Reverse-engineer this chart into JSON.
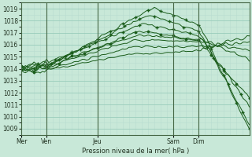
{
  "title": "",
  "xlabel": "Pression niveau de la mer( hPa )",
  "bg_color": "#c8e8d8",
  "grid_major_color": "#99ccbb",
  "grid_minor_color": "#b8ddd0",
  "line_color": "#1a5c1a",
  "ylim": [
    1008.5,
    1019.5
  ],
  "yticks": [
    1009,
    1010,
    1011,
    1012,
    1013,
    1014,
    1015,
    1016,
    1017,
    1018,
    1019
  ],
  "x_day_labels": [
    "Mer",
    "Ven",
    "Jeu",
    "Sam",
    "Dim"
  ],
  "x_day_positions": [
    0,
    12,
    36,
    72,
    84
  ],
  "x_vline_positions": [
    12,
    36,
    72,
    84
  ],
  "total_points": 109
}
